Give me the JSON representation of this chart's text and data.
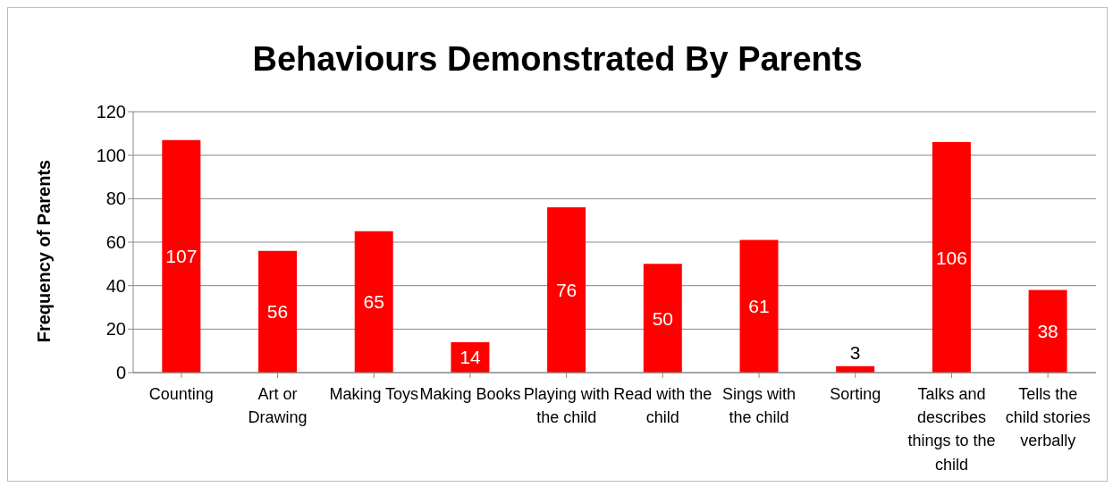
{
  "chart_data": {
    "type": "bar",
    "title": "Behaviours Demonstrated By Parents",
    "ylabel": "Frequency of Parents",
    "categories": [
      "Counting",
      "Art or Drawing",
      "Making Toys",
      "Making Books",
      "Playing with the child",
      "Read with the child",
      "Sings with the child",
      "Sorting",
      "Talks and describes things to the child",
      "Tells the child stories verbally"
    ],
    "values": [
      107,
      56,
      65,
      14,
      76,
      50,
      61,
      3,
      106,
      38
    ],
    "color": "#ff0000",
    "ylim": [
      0,
      120
    ],
    "yticks": [
      0,
      20,
      40,
      60,
      80,
      100,
      120
    ],
    "grid": "y",
    "data_labels": true,
    "legend": false
  }
}
